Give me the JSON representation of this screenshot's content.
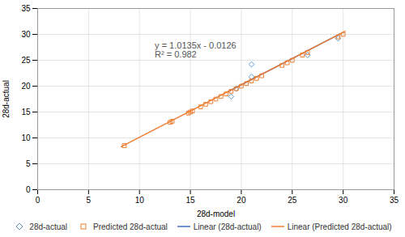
{
  "chart_data": {
    "type": "scatter",
    "xlabel": "28d-model",
    "ylabel": "28d-actual",
    "xlim": [
      0,
      35
    ],
    "ylim": [
      0,
      35
    ],
    "xticks": [
      0,
      5,
      10,
      15,
      20,
      25,
      30,
      35
    ],
    "yticks": [
      0,
      5,
      10,
      15,
      20,
      25,
      30,
      35
    ],
    "grid": true,
    "legend": "bottom",
    "annotations": [
      {
        "text": "y = 1.0135x - 0.0126\nR² = 0.982",
        "x": 11.5,
        "y": 28.5
      }
    ],
    "series": [
      {
        "name": "28d-actual",
        "type": "scatter",
        "marker": "diamond",
        "color": "#5b9bd5",
        "x": [
          19.0,
          19.5,
          21.0,
          21.0,
          26.5,
          29.5
        ],
        "values": [
          18.0,
          19.5,
          21.8,
          24.2,
          26.0,
          29.2
        ]
      },
      {
        "name": "Predicted 28d-actual",
        "type": "scatter",
        "marker": "square",
        "color": "#ed7d31",
        "x": [
          8.5,
          13.0,
          13.2,
          14.8,
          15.0,
          15.2,
          16.0,
          16.5,
          17.0,
          17.5,
          18.0,
          18.5,
          19.0,
          19.5,
          20.0,
          20.5,
          21.0,
          21.5,
          22.0,
          24.0,
          24.5,
          25.0,
          26.0,
          26.5,
          29.5,
          30.0
        ],
        "values": [
          8.5,
          13.0,
          13.2,
          14.8,
          15.0,
          15.2,
          16.0,
          16.5,
          17.0,
          17.5,
          18.0,
          18.5,
          19.0,
          19.5,
          20.0,
          20.5,
          21.0,
          21.5,
          22.0,
          24.0,
          24.5,
          25.0,
          26.0,
          26.5,
          29.5,
          30.0
        ]
      },
      {
        "name": "Linear (28d-actual)",
        "type": "line",
        "line_style": "solid",
        "color": "#4472c4",
        "x": [
          18.7,
          29.7
        ],
        "values": [
          18.93985,
          30.08835
        ]
      },
      {
        "name": "Linear (Predicted 28d-actual)",
        "type": "line",
        "line_style": "solid",
        "color": "#ed7d31",
        "x": [
          8.2,
          30.2
        ],
        "values": [
          8.2981,
          30.5951
        ]
      }
    ]
  }
}
